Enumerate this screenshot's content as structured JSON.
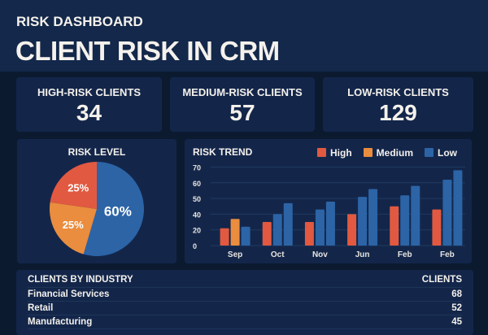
{
  "header": {
    "subtitle": "RISK DASHBOARD",
    "title": "CLIENT RISK IN CRM"
  },
  "kpis": [
    {
      "label": "HIGH-RISK CLIENTS",
      "value": "34"
    },
    {
      "label": "MEDIUM-RISK CLIENTS",
      "value": "57"
    },
    {
      "label": "LOW-RISK CLIENTS",
      "value": "129"
    }
  ],
  "chart_data": [
    {
      "type": "pie",
      "title": "RISK LEVEL",
      "slices": [
        {
          "label": "60%",
          "value": 60,
          "color": "#2c64a6"
        },
        {
          "label": "25%",
          "value": 25,
          "color": "#ea8d3e"
        },
        {
          "label": "25%",
          "value": 25,
          "color": "#e15940"
        }
      ]
    },
    {
      "type": "bar",
      "title": "RISK TREND",
      "legend_position": "top-right",
      "grid": true,
      "yticks": [
        0,
        20,
        40,
        50,
        60,
        70
      ],
      "series_colors": {
        "High": "#e15940",
        "Medium": "#ea8d3e",
        "Low": "#2c64a6"
      },
      "legend": [
        "High",
        "Medium",
        "Low"
      ],
      "categories": [
        "Sep",
        "Oct",
        "Nov",
        "Jun",
        "Feb",
        "Feb"
      ],
      "groups": [
        [
          {
            "series": "High",
            "value": 22
          },
          {
            "series": "Medium",
            "value": 34
          },
          {
            "series": "Low",
            "value": 24
          }
        ],
        [
          {
            "series": "High",
            "value": 30
          },
          {
            "series": "Low",
            "value": 40
          },
          {
            "series": "Low",
            "value": 47
          }
        ],
        [
          {
            "series": "High",
            "value": 30
          },
          {
            "series": "Low",
            "value": 43
          },
          {
            "series": "Low",
            "value": 48
          }
        ],
        [
          {
            "series": "High",
            "value": 40
          },
          {
            "series": "Low",
            "value": 51
          },
          {
            "series": "Low",
            "value": 56
          }
        ],
        [
          {
            "series": "High",
            "value": 45
          },
          {
            "series": "Low",
            "value": 52
          },
          {
            "series": "Low",
            "value": 58
          }
        ],
        [
          {
            "series": "High",
            "value": 43
          },
          {
            "series": "Low",
            "value": 62
          },
          {
            "series": "Low",
            "value": 68
          }
        ]
      ]
    }
  ],
  "table": {
    "title": "CLIENTS BY INDUSTRY",
    "col": "CLIENTS",
    "rows": [
      {
        "name": "Financial Services",
        "value": "68"
      },
      {
        "name": "Retail",
        "value": "52"
      },
      {
        "name": "Manufacturing",
        "value": "45"
      }
    ]
  }
}
